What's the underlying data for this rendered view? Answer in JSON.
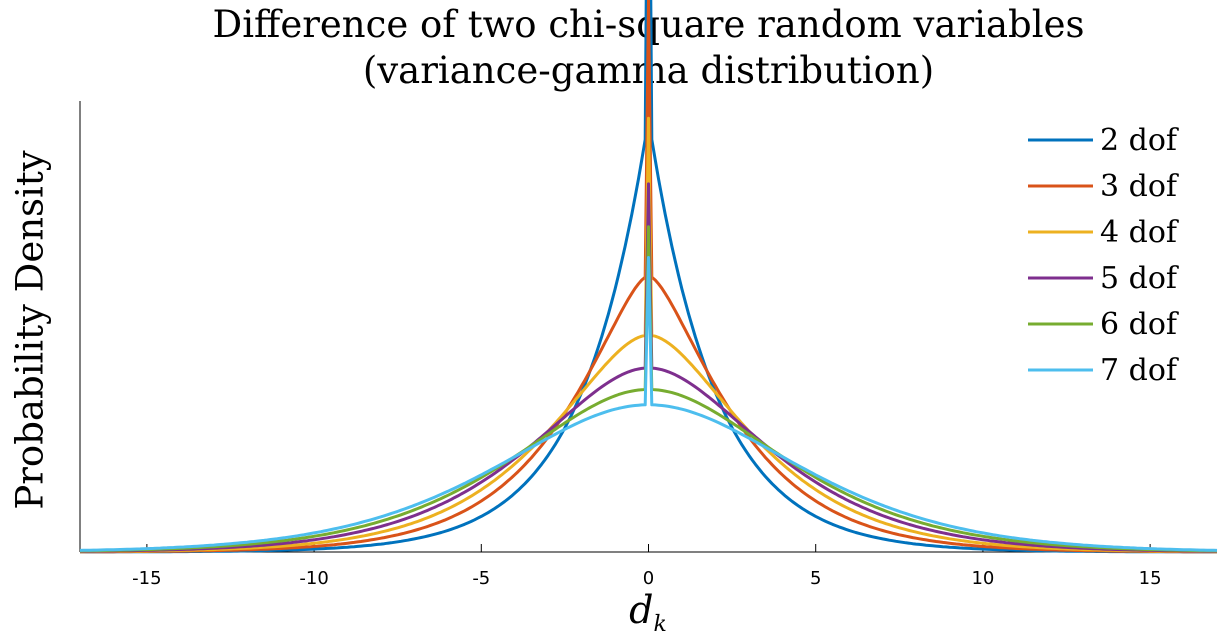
{
  "chart_data": {
    "type": "line",
    "title_line1": "Difference of two chi-square random variables",
    "title_line2": "(variance-gamma distribution)",
    "xlabel_base": "d",
    "xlabel_sub": "k",
    "ylabel": "Probability Density",
    "xlim": [
      -17,
      17
    ],
    "ylim": [
      0,
      0.26
    ],
    "xticks": [
      -15,
      -10,
      -5,
      0,
      5,
      10,
      15
    ],
    "legend_position": "top-right",
    "series": [
      {
        "name": "2 dof",
        "nu": 2,
        "color": "#0072BD"
      },
      {
        "name": "3 dof",
        "nu": 3,
        "color": "#D95319"
      },
      {
        "name": "4 dof",
        "nu": 4,
        "color": "#EDB120"
      },
      {
        "name": "5 dof",
        "nu": 5,
        "color": "#7E2F8E"
      },
      {
        "name": "6 dof",
        "nu": 6,
        "color": "#77AC30"
      },
      {
        "name": "7 dof",
        "nu": 7,
        "color": "#4DBEEE"
      }
    ]
  }
}
